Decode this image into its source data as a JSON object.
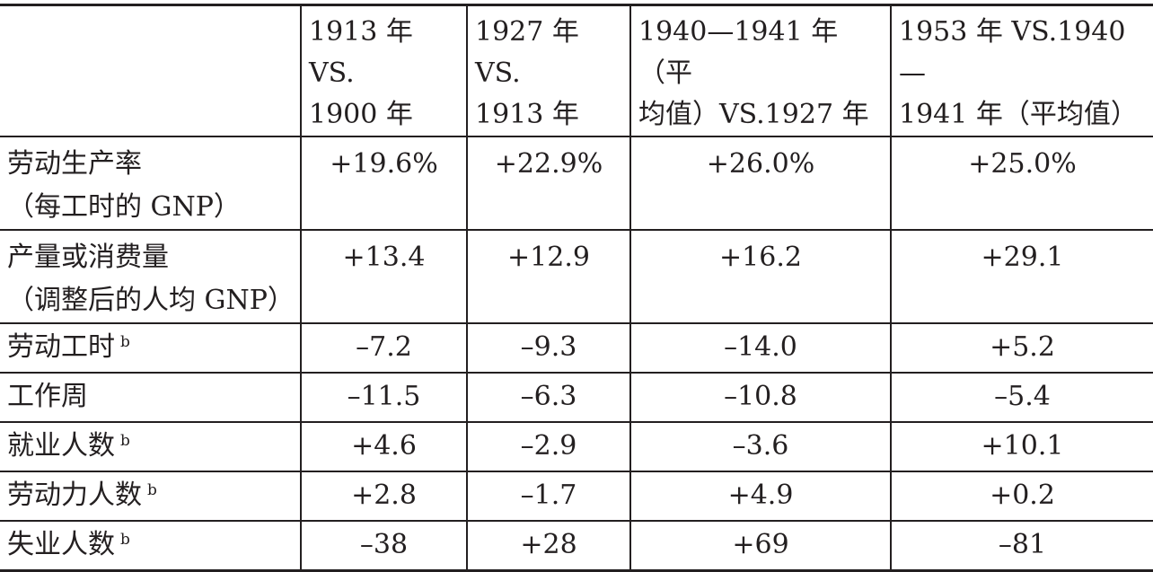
{
  "columns": [
    {
      "line1": "1913 年 VS.",
      "line2": "1900 年"
    },
    {
      "line1": "1927 年 VS.",
      "line2": "1913 年"
    },
    {
      "line1": "1940—1941 年（平",
      "line2": "均值）VS.1927 年"
    },
    {
      "line1": "1953 年 VS.1940—",
      "line2": "1941 年（平均值）"
    }
  ],
  "rows": [
    {
      "label1": "劳动生产率",
      "label2": "（每工时的 GNP）",
      "note": "",
      "values": [
        "+19.6%",
        "+22.9%",
        "+26.0%",
        "+25.0%"
      ]
    },
    {
      "label1": "产量或消费量",
      "label2": "（调整后的人均 GNP）",
      "note": "",
      "values": [
        "+13.4",
        "+12.9",
        "+16.2",
        "+29.1"
      ]
    },
    {
      "label1": "劳动工时",
      "label2": "",
      "note": "b",
      "values": [
        "–7.2",
        "–9.3",
        "–14.0",
        "+5.2"
      ]
    },
    {
      "label1": "工作周",
      "label2": "",
      "note": "",
      "values": [
        "–11.5",
        "–6.3",
        "–10.8",
        "–5.4"
      ]
    },
    {
      "label1": "就业人数",
      "label2": "",
      "note": "b",
      "values": [
        "+4.6",
        "–2.9",
        "–3.6",
        "+10.1"
      ]
    },
    {
      "label1": "劳动力人数",
      "label2": "",
      "note": "b",
      "values": [
        "+2.8",
        "–1.7",
        "+4.9",
        "+0.2"
      ]
    },
    {
      "label1": "失业人数",
      "label2": "",
      "note": "b",
      "values": [
        "–38",
        "+28",
        "+69",
        "–81"
      ]
    }
  ]
}
